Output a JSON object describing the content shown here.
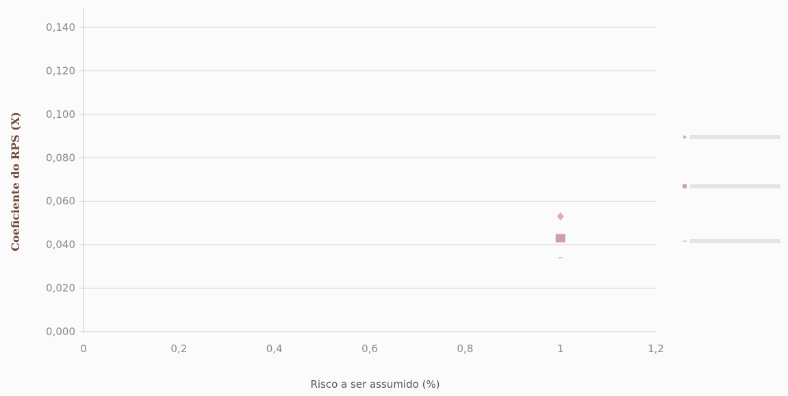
{
  "chart_data": {
    "type": "scatter",
    "xlabel": "Risco a ser assumido (%)",
    "ylabel": "Coeficiente do RPS (X)",
    "xlim": [
      0,
      1.2
    ],
    "ylim": [
      0,
      0.14
    ],
    "x_ticks": [
      "0",
      "0,2",
      "0,4",
      "0,6",
      "0,8",
      "1",
      "1,2"
    ],
    "y_ticks": [
      "0,000",
      "0,020",
      "0,040",
      "0,060",
      "0,080",
      "0,100",
      "0,120",
      "0,140"
    ],
    "grid": true,
    "legend_position": "right",
    "series": [
      {
        "color": "#e0a8bc",
        "marker": "diamond",
        "points": [
          {
            "x": 1,
            "y": 0.053
          }
        ]
      },
      {
        "color": "#cfa0ac",
        "marker": "square",
        "points": [
          {
            "x": 1,
            "y": 0.043
          }
        ]
      },
      {
        "color": "#e7b6c4",
        "marker": "dash",
        "points": [
          {
            "x": 1,
            "y": 0.034
          }
        ]
      }
    ]
  }
}
